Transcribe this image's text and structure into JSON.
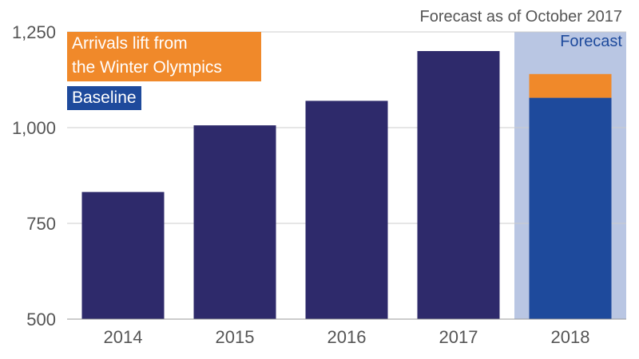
{
  "note": "Forecast as of October 2017",
  "forecast_label": "Forecast",
  "legend": {
    "lift_line1": "Arrivals lift from",
    "lift_line2": "the Winter Olympics",
    "baseline": "Baseline"
  },
  "colors": {
    "bar": "#2e2a6b",
    "baseline": "#1e4a9c",
    "lift": "#f0892a",
    "forecast_band": "#b9c6e3",
    "grid": "#cccccc",
    "axis_text": "#555555"
  },
  "chart_data": {
    "type": "bar",
    "categories": [
      "2014",
      "2015",
      "2016",
      "2017",
      "2018"
    ],
    "series": [
      {
        "values": [
          832,
          1006,
          1070,
          1200,
          1078
        ]
      },
      {
        "values": [
          0,
          0,
          0,
          0,
          62
        ]
      }
    ],
    "ylim": [
      500,
      1250
    ],
    "yticks": [
      500,
      750,
      1000,
      1250
    ],
    "ytick_labels": [
      "500",
      "750",
      "1,000",
      "1,250"
    ],
    "forecast_category": "2018",
    "grid": true
  }
}
